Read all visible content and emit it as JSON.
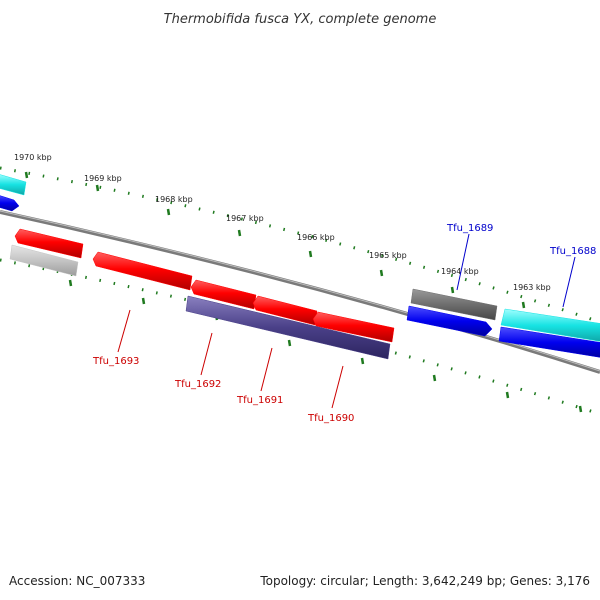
{
  "title": "Thermobifida fusca YX, complete genome",
  "footer": {
    "accession_label": "Accession:",
    "accession": "NC_007333",
    "topology_label": "Topology:",
    "topology": "circular",
    "length_label": "Length:",
    "length": "3,642,249 bp",
    "genes_label": "Genes:",
    "genes": "3,176"
  },
  "colors": {
    "background": "#ffffff",
    "backbone": "#7a7a7a",
    "ticks": "#1f7a1f",
    "gene_red": "#ff0000",
    "gene_indigo": "#4a4088",
    "gene_gray": "#6e6e6e",
    "gene_light_gray": "#c4c4c4",
    "gene_blue": "#0000ee",
    "gene_cyan": "#17e3e3",
    "label_red": "#cc0000",
    "label_blue": "#0000cc"
  },
  "scale_labels": [
    "1970 kbp",
    "1969 kbp",
    "1968 kbp",
    "1967 kbp",
    "1966 kbp",
    "1965 kbp",
    "1964 kbp",
    "1963 kbp"
  ],
  "gene_labels": [
    {
      "text": "Tfu_1689",
      "color": "blue"
    },
    {
      "text": "Tfu_1688",
      "color": "blue"
    },
    {
      "text": "Tfu_1693",
      "color": "red"
    },
    {
      "text": "Tfu_1692",
      "color": "red"
    },
    {
      "text": "Tfu_1691",
      "color": "red"
    },
    {
      "text": "Tfu_1690",
      "color": "red"
    }
  ],
  "features": [
    {
      "name": "feature-cyan-left",
      "color": "cyan"
    },
    {
      "name": "feature-blue-left",
      "color": "blue"
    },
    {
      "name": "feature-red-left",
      "color": "red"
    },
    {
      "name": "feature-gray-left",
      "color": "light_gray"
    },
    {
      "name": "gene-tfu-1693",
      "color": "red"
    },
    {
      "name": "gene-tfu-1692",
      "color": "red"
    },
    {
      "name": "gene-tfu-1691",
      "color": "red"
    },
    {
      "name": "gene-tfu-1690",
      "color": "red"
    },
    {
      "name": "feature-indigo-band",
      "color": "indigo"
    },
    {
      "name": "feature-gray-right",
      "color": "gray"
    },
    {
      "name": "gene-tfu-1689",
      "color": "blue"
    },
    {
      "name": "gene-tfu-1688",
      "color": "cyan"
    },
    {
      "name": "feature-blue-right",
      "color": "blue"
    }
  ]
}
